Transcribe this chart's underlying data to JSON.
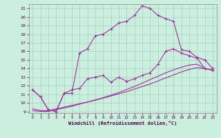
{
  "xlabel": "Windchill (Refroidissement éolien,°C)",
  "bg_color": "#cceedd",
  "grid_color": "#aacccc",
  "line_color": "#993399",
  "xlim": [
    -0.5,
    23.5
  ],
  "ylim": [
    8.8,
    21.5
  ],
  "xticks": [
    0,
    1,
    2,
    3,
    4,
    5,
    6,
    7,
    8,
    9,
    10,
    11,
    12,
    13,
    14,
    15,
    16,
    17,
    18,
    19,
    20,
    21,
    22,
    23
  ],
  "yticks": [
    9,
    10,
    11,
    12,
    13,
    14,
    15,
    16,
    17,
    18,
    19,
    20,
    21
  ],
  "line1_x": [
    0,
    1,
    2,
    3,
    4,
    5,
    6,
    7,
    8,
    9,
    10,
    11,
    12,
    13,
    14,
    15,
    16,
    17,
    18,
    19,
    20,
    21,
    22,
    23
  ],
  "line1_y": [
    11.5,
    10.7,
    9.2,
    9.0,
    11.1,
    11.5,
    11.7,
    12.8,
    13.0,
    13.2,
    12.4,
    13.0,
    12.5,
    12.8,
    13.2,
    13.5,
    14.5,
    16.0,
    16.3,
    15.8,
    15.5,
    15.2,
    14.0,
    13.8
  ],
  "line2_x": [
    0,
    1,
    2,
    3,
    4,
    5,
    6,
    7,
    8,
    9,
    10,
    11,
    12,
    13,
    14,
    15,
    16,
    17,
    18,
    19,
    20,
    21,
    22,
    23
  ],
  "line2_y": [
    11.5,
    10.7,
    9.2,
    9.0,
    11.1,
    11.1,
    15.8,
    16.3,
    17.8,
    18.0,
    18.6,
    19.3,
    19.5,
    20.2,
    21.3,
    21.0,
    20.2,
    19.8,
    19.5,
    16.2,
    16.0,
    15.3,
    15.0,
    14.0
  ],
  "line3_x": [
    0,
    1,
    2,
    3,
    4,
    5,
    6,
    7,
    8,
    9,
    10,
    11,
    12,
    13,
    14,
    15,
    16,
    17,
    18,
    19,
    20,
    21,
    22,
    23
  ],
  "line3_y": [
    9.3,
    9.1,
    9.1,
    9.3,
    9.5,
    9.7,
    9.9,
    10.1,
    10.3,
    10.55,
    10.8,
    11.05,
    11.3,
    11.6,
    11.9,
    12.2,
    12.55,
    12.9,
    13.25,
    13.6,
    13.9,
    14.1,
    13.95,
    13.85
  ],
  "line4_x": [
    0,
    1,
    2,
    3,
    4,
    5,
    6,
    7,
    8,
    9,
    10,
    11,
    12,
    13,
    14,
    15,
    16,
    17,
    18,
    19,
    20,
    21,
    22,
    23
  ],
  "line4_y": [
    9.1,
    9.0,
    9.0,
    9.2,
    9.4,
    9.6,
    9.85,
    10.1,
    10.35,
    10.6,
    10.9,
    11.2,
    11.55,
    11.9,
    12.3,
    12.7,
    13.1,
    13.5,
    13.85,
    14.15,
    14.4,
    14.5,
    14.0,
    13.85
  ]
}
